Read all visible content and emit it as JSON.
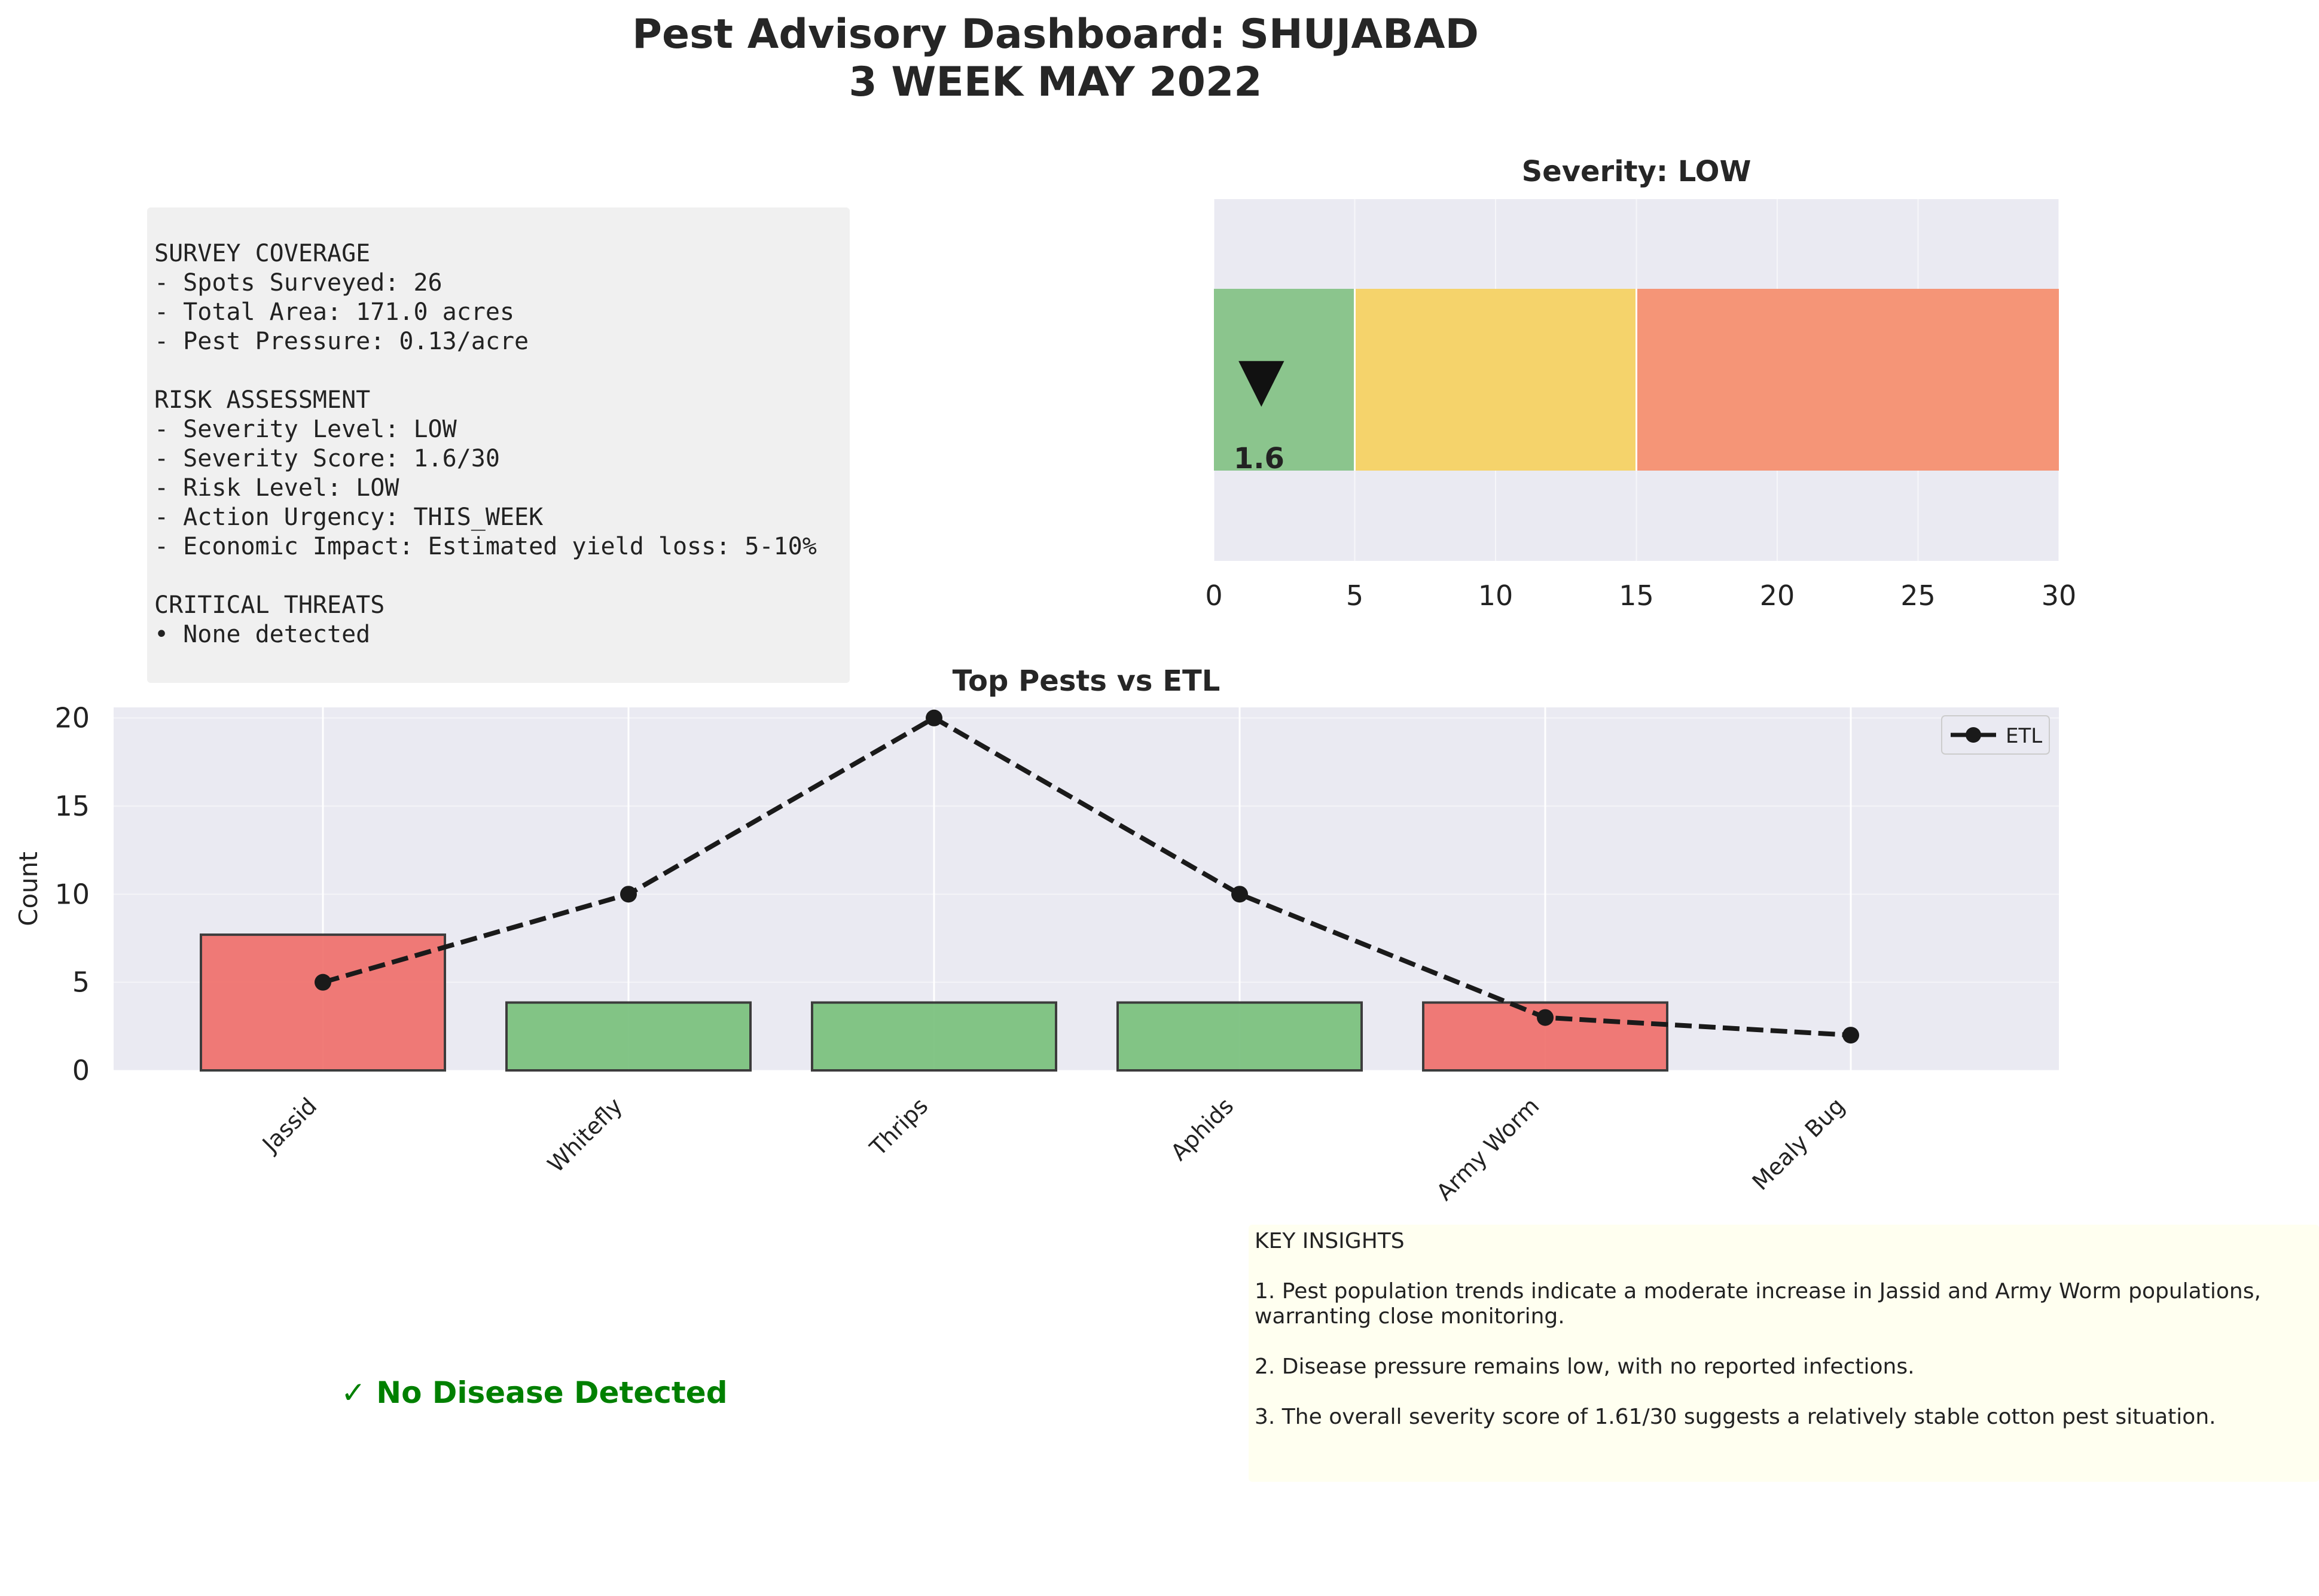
{
  "title_line1": "Pest Advisory Dashboard: SHUJABAD",
  "title_line2": "3 WEEK MAY 2022",
  "summary": {
    "lines": [
      "SURVEY COVERAGE",
      "- Spots Surveyed: 26",
      "- Total Area: 171.0 acres",
      "- Pest Pressure: 0.13/acre",
      "",
      "RISK ASSESSMENT",
      "- Severity Level: LOW",
      "- Severity Score: 1.6/30",
      "- Risk Level: LOW",
      "- Action Urgency: THIS_WEEK",
      "- Economic Impact: Estimated yield loss: 5-10%",
      "",
      "CRITICAL THREATS",
      "• None detected"
    ]
  },
  "gauge": {
    "title": "Severity: LOW",
    "value": 1.6,
    "value_label": "1.6",
    "marker": "▼",
    "xlim": [
      0,
      30
    ],
    "ticks": [
      "0",
      "5",
      "10",
      "15",
      "20",
      "25",
      "30"
    ],
    "zones": [
      {
        "from": 0,
        "to": 5,
        "color": "#8bc58d"
      },
      {
        "from": 5,
        "to": 15,
        "color": "#f5d36b"
      },
      {
        "from": 15,
        "to": 30,
        "color": "#f59577"
      }
    ]
  },
  "chart_data": {
    "type": "bar",
    "title": "Top Pests vs ETL",
    "xlabel": "",
    "ylabel": "Count",
    "ylim": [
      0,
      20.6
    ],
    "yticks": [
      "0",
      "5",
      "10",
      "15",
      "20"
    ],
    "categories": [
      "Jassid",
      "Whitefly",
      "Thrips",
      "Aphids",
      "Army Worm",
      "Mealy Bug"
    ],
    "series": [
      {
        "name": "Count",
        "values": [
          7.7,
          3.85,
          3.85,
          3.85,
          3.85,
          0
        ],
        "colors": [
          "#f07470",
          "#7dc280",
          "#7dc280",
          "#7dc280",
          "#f07470",
          "#7dc280"
        ]
      },
      {
        "name": "ETL",
        "values": [
          5,
          10,
          20,
          10,
          3,
          2
        ],
        "style": "dashed line with markers"
      }
    ],
    "legend": "top-right"
  },
  "disease_message": "✓ No Disease Detected",
  "insights": {
    "heading": "KEY INSIGHTS",
    "items": [
      "1. Pest population trends indicate a moderate increase in Jassid and Army Worm populations, warranting close monitoring.",
      "2. Disease pressure remains low, with no reported infections.",
      "3. The overall severity score of 1.61/30 suggests a relatively stable cotton pest situation."
    ]
  }
}
